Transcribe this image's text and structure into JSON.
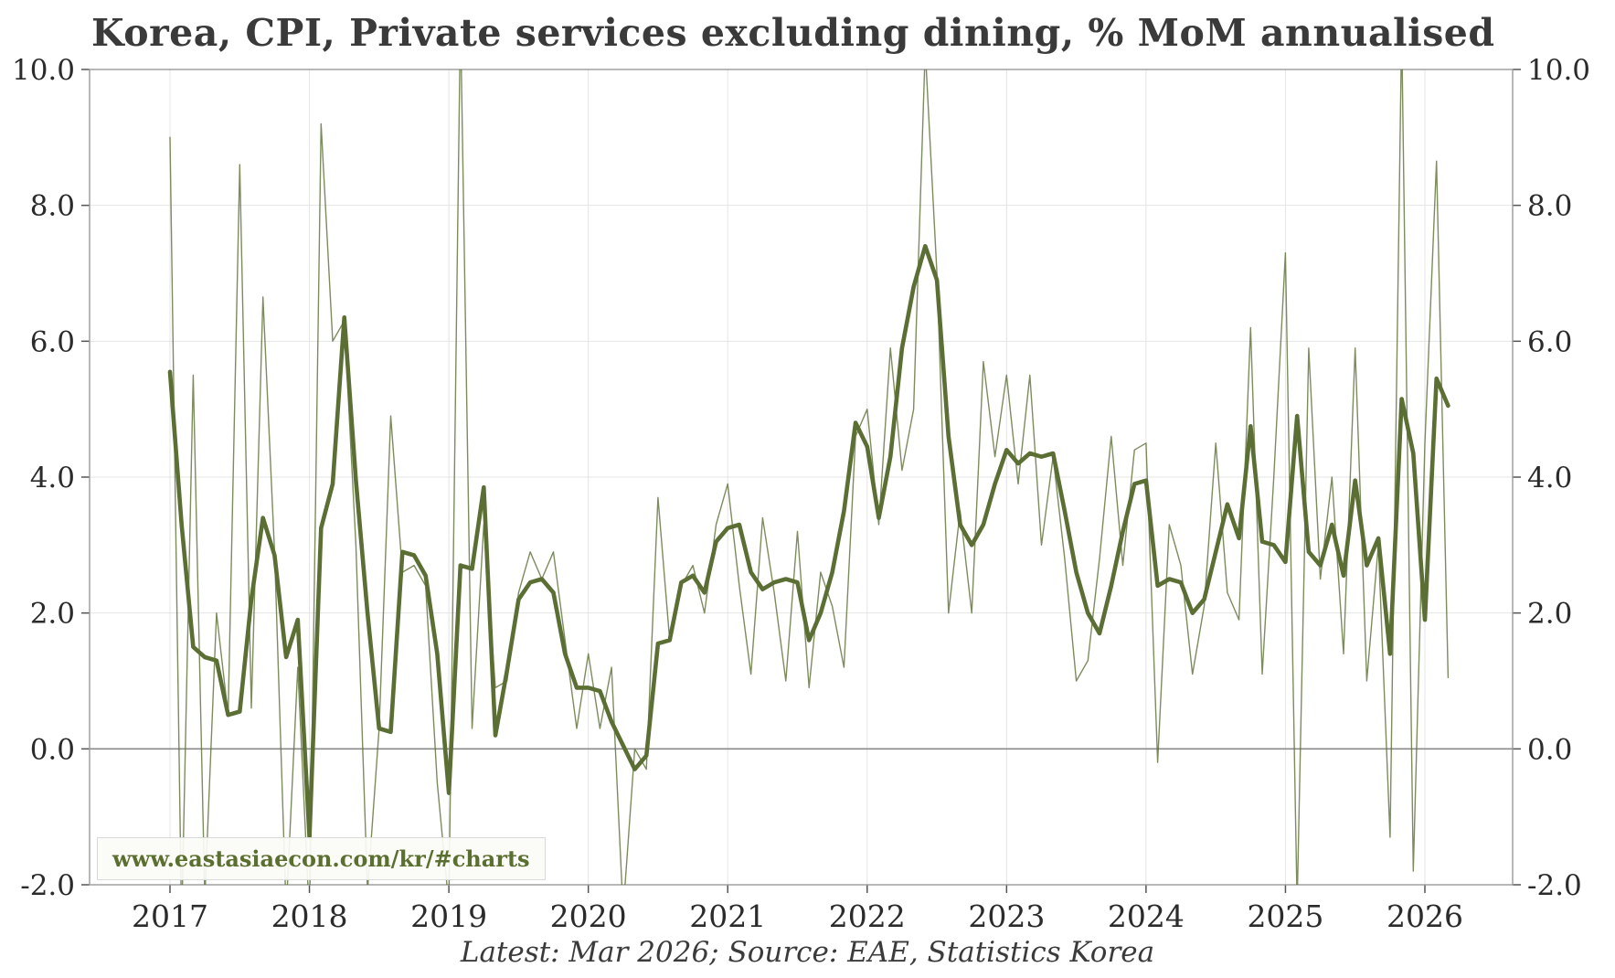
{
  "title": "Korea, CPI, Private services excluding dining, % MoM annualised",
  "caption": "Latest: Mar 2026; Source: EAE, Statistics Korea",
  "watermark": "www.eastasiaecon.com/kr/#charts",
  "chart_data": {
    "type": "line",
    "title": "Korea, CPI, Private services excluding dining, % MoM annualised",
    "xlabel": "",
    "ylabel": "% MoM annualised",
    "frequency": "monthly",
    "x_start": "2017-01",
    "x_end": "2026-03",
    "ylim": [
      -2.0,
      10.0
    ],
    "y_ticks": [
      10,
      8,
      6,
      4,
      2,
      0,
      -2
    ],
    "y_tick_labels": [
      "10.0",
      "8.0",
      "6.0",
      "4.0",
      "2.0",
      "0.0",
      "-2.0"
    ],
    "x_tick_years": [
      "2017",
      "2018",
      "2019",
      "2020",
      "2021",
      "2022",
      "2023",
      "2024",
      "2025",
      "2026"
    ],
    "grid": true,
    "legend": "none",
    "line_color": "#5b6f34",
    "zero_line_color": "#8a8a8a",
    "series": [
      {
        "name": "mom-monthly",
        "style": "thin",
        "values": [
          9.0,
          -2.6,
          5.5,
          -2.2,
          2.0,
          0.5,
          8.6,
          0.6,
          6.65,
          2.9,
          -2.4,
          1.2,
          -2.5,
          9.2,
          6.0,
          6.3,
          3.0,
          -2.1,
          0.3,
          4.9,
          2.6,
          2.7,
          2.4,
          -0.5,
          -2.3,
          10.8,
          0.3,
          3.3,
          0.9,
          1.0,
          2.3,
          2.9,
          2.5,
          2.9,
          1.6,
          0.3,
          1.4,
          0.3,
          1.2,
          -2.4,
          0.0,
          -0.3,
          3.7,
          1.6,
          2.4,
          2.7,
          2.0,
          3.3,
          3.9,
          2.4,
          1.1,
          3.4,
          2.3,
          1.0,
          3.2,
          0.9,
          2.6,
          2.1,
          1.2,
          4.6,
          5.0,
          3.3,
          5.9,
          4.1,
          5.0,
          10.3,
          7.0,
          2.0,
          3.5,
          2.0,
          5.7,
          4.3,
          5.5,
          3.9,
          5.5,
          3.0,
          4.3,
          2.8,
          1.0,
          1.3,
          2.8,
          4.6,
          2.7,
          4.4,
          4.5,
          -0.2,
          3.3,
          2.7,
          1.1,
          2.1,
          4.5,
          2.3,
          1.9,
          6.2,
          1.1,
          4.0,
          7.3,
          -2.3,
          5.9,
          2.5,
          4.0,
          1.4,
          5.9,
          1.0,
          3.0,
          -1.3,
          10.6,
          -1.8,
          4.5,
          8.65,
          1.05
        ]
      },
      {
        "name": "mom-smoothed",
        "style": "thick",
        "values": [
          5.55,
          3.3,
          1.5,
          1.35,
          1.3,
          0.5,
          0.55,
          2.2,
          3.4,
          2.85,
          1.35,
          1.9,
          -1.3,
          3.25,
          3.9,
          6.35,
          3.95,
          2.0,
          0.3,
          0.25,
          2.9,
          2.85,
          2.55,
          1.4,
          -0.65,
          2.7,
          2.65,
          3.85,
          0.2,
          1.15,
          2.2,
          2.45,
          2.5,
          2.3,
          1.4,
          0.9,
          0.9,
          0.85,
          0.4,
          0.05,
          -0.3,
          -0.1,
          1.55,
          1.6,
          2.45,
          2.55,
          2.3,
          3.05,
          3.25,
          3.3,
          2.6,
          2.35,
          2.45,
          2.5,
          2.45,
          1.6,
          2.0,
          2.6,
          3.5,
          4.8,
          4.45,
          3.4,
          4.3,
          5.9,
          6.8,
          7.4,
          6.9,
          4.6,
          3.3,
          3.0,
          3.3,
          3.9,
          4.4,
          4.2,
          4.35,
          4.3,
          4.35,
          3.5,
          2.6,
          2.0,
          1.7,
          2.4,
          3.2,
          3.9,
          3.95,
          2.4,
          2.5,
          2.45,
          2.0,
          2.2,
          2.9,
          3.6,
          3.1,
          4.75,
          3.05,
          3.0,
          2.75,
          4.9,
          2.9,
          2.7,
          3.3,
          2.55,
          3.95,
          2.7,
          3.1,
          1.4,
          5.15,
          4.35,
          1.9,
          5.45,
          5.05
        ]
      }
    ]
  }
}
